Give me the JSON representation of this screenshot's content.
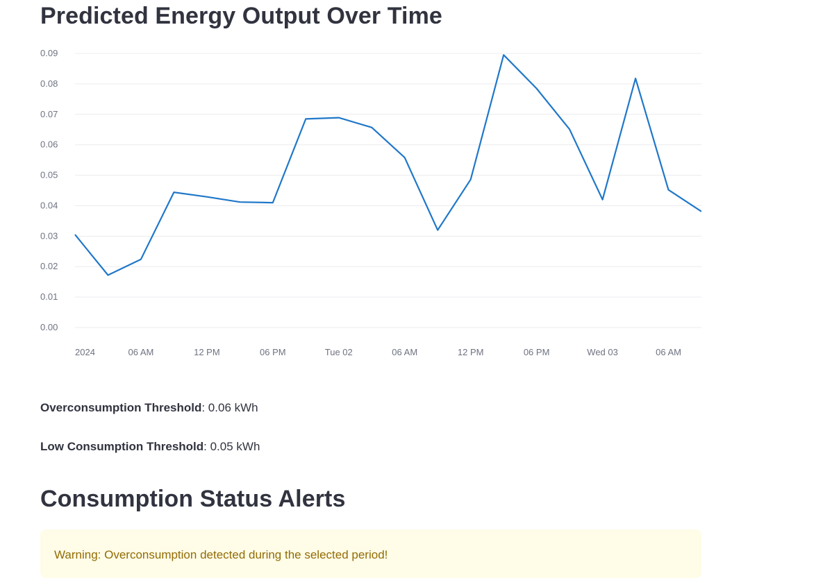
{
  "chart_section": {
    "title": "Predicted Energy Output Over Time"
  },
  "chart_data": {
    "type": "line",
    "title": "Predicted Energy Output Over Time",
    "xlabel": "",
    "ylabel": "",
    "x_tick_labels": [
      "2024",
      "06 AM",
      "12 PM",
      "06 PM",
      "Tue 02",
      "06 AM",
      "12 PM",
      "06 PM",
      "Wed 03",
      "06 AM"
    ],
    "y_tick_labels": [
      "0.00",
      "0.01",
      "0.02",
      "0.03",
      "0.04",
      "0.05",
      "0.06",
      "0.07",
      "0.08",
      "0.09"
    ],
    "ylim": [
      0,
      0.09
    ],
    "grid": true,
    "series": [
      {
        "color": "#1f77c9",
        "x": [
          "2024-01-01 00:00",
          "2024-01-01 03:00",
          "2024-01-01 06:00",
          "2024-01-01 09:00",
          "2024-01-01 12:00",
          "2024-01-01 15:00",
          "2024-01-01 18:00",
          "2024-01-01 21:00",
          "2024-01-02 00:00",
          "2024-01-02 03:00",
          "2024-01-02 06:00",
          "2024-01-02 09:00",
          "2024-01-02 12:00",
          "2024-01-02 15:00",
          "2024-01-02 18:00",
          "2024-01-02 21:00",
          "2024-01-03 00:00",
          "2024-01-03 03:00",
          "2024-01-03 06:00",
          "2024-01-03 09:00"
        ],
        "values": [
          0.0305,
          0.0172,
          0.0224,
          0.0444,
          0.0429,
          0.0412,
          0.041,
          0.0685,
          0.0689,
          0.0657,
          0.0558,
          0.032,
          0.0486,
          0.0895,
          0.0785,
          0.0651,
          0.042,
          0.0818,
          0.0452,
          0.0381
        ]
      }
    ]
  },
  "thresholds": {
    "over_label": "Overconsumption Threshold",
    "over_value": ": 0.06 kWh",
    "low_label": "Low Consumption Threshold",
    "low_value": ": 0.05 kWh"
  },
  "alerts_section": {
    "title": "Consumption Status Alerts",
    "warning_text": "Warning: Overconsumption detected during the selected period!",
    "warning_bg": "#fffce7",
    "warning_color": "#926c05"
  }
}
